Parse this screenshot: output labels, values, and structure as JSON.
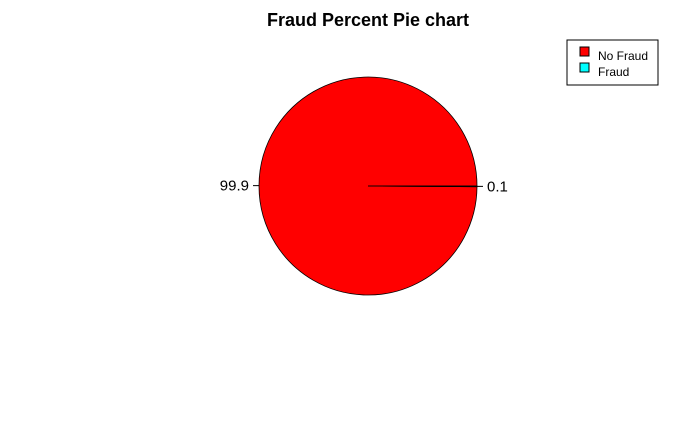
{
  "chart_data": {
    "type": "pie",
    "title": "Fraud Percent Pie chart",
    "slices": [
      {
        "name": "No Fraud",
        "value": 99.9,
        "label": "99.9",
        "color": "#ff0000"
      },
      {
        "name": "Fraud",
        "value": 0.1,
        "label": "0.1",
        "color": "#00ffff"
      }
    ],
    "legend": {
      "position": "top-right",
      "entries": [
        "No Fraud",
        "Fraud"
      ]
    },
    "start_angle": "0 degrees (3 o'clock), counter-clockwise"
  }
}
